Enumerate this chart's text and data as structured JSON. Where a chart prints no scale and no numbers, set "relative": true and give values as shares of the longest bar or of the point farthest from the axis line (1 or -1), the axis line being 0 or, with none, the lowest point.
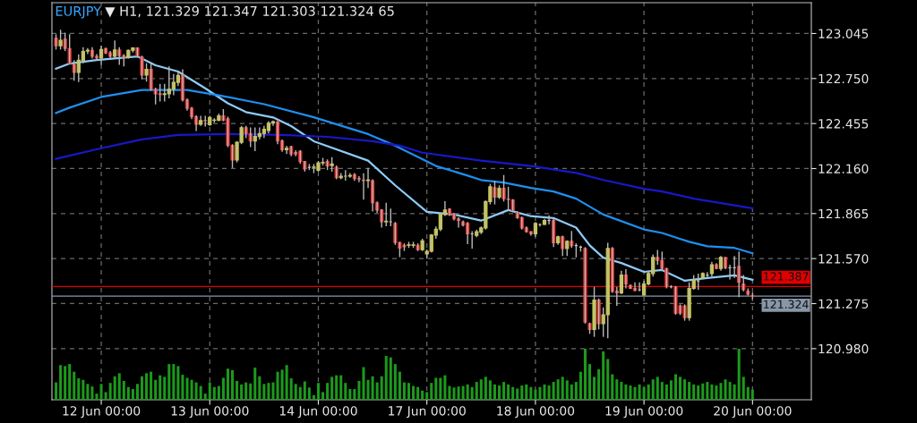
{
  "chart_data": [
    {
      "type": "candlestick",
      "title": "EURJPY ▼ H1, 121.329 121.347 121.303 121.324 65",
      "categories": [
        null,
        null,
        null,
        null,
        null,
        null,
        null,
        null,
        null,
        null,
        "12 Jun 00:00",
        null,
        null,
        null,
        null,
        null,
        null,
        null,
        null,
        null,
        null,
        null,
        null,
        null,
        null,
        null,
        null,
        null,
        null,
        null,
        null,
        null,
        null,
        null,
        "13 Jun 00:00",
        null,
        null,
        null,
        null,
        null,
        null,
        null,
        null,
        null,
        null,
        null,
        null,
        null,
        null,
        null,
        null,
        null,
        null,
        null,
        null,
        null,
        null,
        null,
        "14 Jun 00:00",
        null,
        null,
        null,
        null,
        null,
        null,
        null,
        null,
        null,
        null,
        null,
        null,
        null,
        null,
        null,
        null,
        null,
        null,
        null,
        null,
        null,
        null,
        null,
        "17 Jun 00:00",
        null,
        null,
        null,
        null,
        null,
        null,
        null,
        null,
        null,
        null,
        null,
        null,
        null,
        null,
        null,
        null,
        null,
        null,
        null,
        null,
        null,
        null,
        null,
        "18 Jun 00:00",
        null,
        null,
        null,
        null,
        null,
        null,
        null,
        null,
        null,
        null,
        null,
        null,
        null,
        null,
        null,
        null,
        null,
        null,
        null,
        null,
        null,
        null,
        null,
        "19 Jun 00:00",
        null,
        null,
        null,
        null,
        null,
        null,
        null,
        null,
        null,
        null,
        null,
        null,
        null,
        null,
        null,
        null,
        null,
        null,
        null,
        null,
        null,
        null,
        null,
        "20 Jun 00:00"
      ],
      "ohlc": [
        [
          123.014,
          123.04,
          122.94,
          122.965
        ],
        [
          122.965,
          123.07,
          122.94,
          123.0
        ],
        [
          123.008,
          123.05,
          122.93,
          122.947
        ],
        [
          122.947,
          123.04,
          122.85,
          122.85
        ],
        [
          122.84,
          122.87,
          122.735,
          122.79
        ],
        [
          122.79,
          122.908,
          122.727,
          122.87
        ],
        [
          122.87,
          122.956,
          122.85,
          122.927
        ],
        [
          122.93,
          122.95,
          122.91,
          122.935
        ],
        [
          122.935,
          122.955,
          122.88,
          122.895
        ],
        [
          122.895,
          122.91,
          122.87,
          122.885
        ],
        [
          122.885,
          122.966,
          122.84,
          122.94
        ],
        [
          122.947,
          122.953,
          122.91,
          122.918
        ],
        [
          122.918,
          122.93,
          122.88,
          122.895
        ],
        [
          122.895,
          123.0,
          122.88,
          122.937
        ],
        [
          122.937,
          122.955,
          122.84,
          122.9
        ],
        [
          122.9,
          122.91,
          122.83,
          122.89
        ],
        [
          122.89,
          122.94,
          122.88,
          122.935
        ],
        [
          122.935,
          122.955,
          122.92,
          122.95
        ],
        [
          122.95,
          122.955,
          122.89,
          122.9
        ],
        [
          122.89,
          122.9,
          122.745,
          122.773
        ],
        [
          122.773,
          122.85,
          122.73,
          122.81
        ],
        [
          122.81,
          122.85,
          122.67,
          122.68
        ],
        [
          122.68,
          122.69,
          122.58,
          122.65
        ],
        [
          122.65,
          122.715,
          122.6,
          122.645
        ],
        [
          122.645,
          122.715,
          122.6,
          122.65
        ],
        [
          122.65,
          122.83,
          122.62,
          122.68
        ],
        [
          122.68,
          122.78,
          122.64,
          122.725
        ],
        [
          122.725,
          122.8,
          122.7,
          122.77
        ],
        [
          122.77,
          122.81,
          122.6,
          122.61
        ],
        [
          122.61,
          122.62,
          122.54,
          122.555
        ],
        [
          122.555,
          122.565,
          122.484,
          122.5
        ],
        [
          122.5,
          122.51,
          122.406,
          122.45
        ],
        [
          122.45,
          122.505,
          122.44,
          122.475
        ],
        [
          122.475,
          122.505,
          122.435,
          122.473
        ],
        [
          122.447,
          122.505,
          122.44,
          122.495
        ],
        [
          122.476,
          122.49,
          122.46,
          122.478
        ],
        [
          122.476,
          122.52,
          122.47,
          122.505
        ],
        [
          122.505,
          122.55,
          122.47,
          122.476
        ],
        [
          122.486,
          122.5,
          122.3,
          122.312
        ],
        [
          122.312,
          122.32,
          122.164,
          122.216
        ],
        [
          122.216,
          122.34,
          122.2,
          122.332
        ],
        [
          122.332,
          122.44,
          122.32,
          122.428
        ],
        [
          122.428,
          122.44,
          122.36,
          122.39
        ],
        [
          122.39,
          122.43,
          122.3,
          122.341
        ],
        [
          122.341,
          122.43,
          122.274,
          122.37
        ],
        [
          122.37,
          122.43,
          122.35,
          122.39
        ],
        [
          122.39,
          122.44,
          122.36,
          122.418
        ],
        [
          122.409,
          122.47,
          122.39,
          122.457
        ],
        [
          122.457,
          122.475,
          122.44,
          122.467
        ],
        [
          122.467,
          122.47,
          122.32,
          122.341
        ],
        [
          122.341,
          122.35,
          122.27,
          122.284
        ],
        [
          122.284,
          122.31,
          122.255,
          122.293
        ],
        [
          122.303,
          122.31,
          122.24,
          122.255
        ],
        [
          122.265,
          122.28,
          122.24,
          122.255
        ],
        [
          122.274,
          122.28,
          122.19,
          122.206
        ],
        [
          122.206,
          122.21,
          122.14,
          122.158
        ],
        [
          122.168,
          122.19,
          122.15,
          122.168
        ],
        [
          122.168,
          122.19,
          122.13,
          122.17
        ],
        [
          122.148,
          122.21,
          122.14,
          122.197
        ],
        [
          122.197,
          122.23,
          122.18,
          122.2
        ],
        [
          122.206,
          122.22,
          122.15,
          122.177
        ],
        [
          122.18,
          122.235,
          122.139,
          122.19
        ],
        [
          122.168,
          122.18,
          122.09,
          122.1
        ],
        [
          122.1,
          122.13,
          122.09,
          122.11
        ],
        [
          122.11,
          122.15,
          122.081,
          122.11
        ],
        [
          122.11,
          122.13,
          122.1,
          122.115
        ],
        [
          122.12,
          122.13,
          122.08,
          122.095
        ],
        [
          122.095,
          122.11,
          122.07,
          122.091
        ],
        [
          122.085,
          122.129,
          121.956,
          122.081
        ],
        [
          122.081,
          122.164,
          122.033,
          122.085
        ],
        [
          122.081,
          122.09,
          121.879,
          121.936
        ],
        [
          121.936,
          121.945,
          121.87,
          121.888
        ],
        [
          121.888,
          121.895,
          121.773,
          121.811
        ],
        [
          121.811,
          121.936,
          121.782,
          121.815
        ],
        [
          121.811,
          121.898,
          121.782,
          121.811
        ],
        [
          121.801,
          121.81,
          121.66,
          121.676
        ],
        [
          121.676,
          121.68,
          121.58,
          121.638
        ],
        [
          121.657,
          121.67,
          121.62,
          121.648
        ],
        [
          121.657,
          121.68,
          121.64,
          121.66
        ],
        [
          121.657,
          121.68,
          121.64,
          121.66
        ],
        [
          121.657,
          121.67,
          121.62,
          121.628
        ],
        [
          121.628,
          121.7,
          121.62,
          121.686
        ],
        [
          121.6,
          121.63,
          121.57,
          121.618
        ],
        [
          121.618,
          121.73,
          121.61,
          121.724
        ],
        [
          121.724,
          121.78,
          121.7,
          121.763
        ],
        [
          121.763,
          121.87,
          121.75,
          121.859
        ],
        [
          121.859,
          121.946,
          121.85,
          121.888
        ],
        [
          121.894,
          121.9,
          121.85,
          121.859
        ],
        [
          121.859,
          121.87,
          121.82,
          121.83
        ],
        [
          121.83,
          121.84,
          121.773,
          121.82
        ],
        [
          121.809,
          121.82,
          121.78,
          121.79
        ],
        [
          121.8,
          121.81,
          121.665,
          121.732
        ],
        [
          121.732,
          121.75,
          121.636,
          121.732
        ],
        [
          121.722,
          121.76,
          121.71,
          121.746
        ],
        [
          121.742,
          121.78,
          121.73,
          121.771
        ],
        [
          121.771,
          121.95,
          121.76,
          121.944
        ],
        [
          121.944,
          122.06,
          121.925,
          122.041
        ],
        [
          122.035,
          122.079,
          121.925,
          121.973
        ],
        [
          121.973,
          122.05,
          121.96,
          122.031
        ],
        [
          122.031,
          122.118,
          121.944,
          121.963
        ],
        [
          121.96,
          122.041,
          121.886,
          121.958
        ],
        [
          121.954,
          121.96,
          121.88,
          121.886
        ],
        [
          121.871,
          121.88,
          121.83,
          121.838
        ],
        [
          121.838,
          121.845,
          121.76,
          121.771
        ],
        [
          121.771,
          121.78,
          121.74,
          121.747
        ],
        [
          121.747,
          121.75,
          121.72,
          121.732
        ],
        [
          121.732,
          121.81,
          121.713,
          121.8
        ],
        [
          121.794,
          121.8,
          121.78,
          121.794
        ],
        [
          121.794,
          121.83,
          121.79,
          121.819
        ],
        [
          121.819,
          121.853,
          121.794,
          121.819
        ],
        [
          121.819,
          121.83,
          121.645,
          121.674
        ],
        [
          121.674,
          121.72,
          121.66,
          121.713
        ],
        [
          121.713,
          121.72,
          121.587,
          121.636
        ],
        [
          121.636,
          121.69,
          121.587,
          121.684
        ],
        [
          121.684,
          121.751,
          121.64,
          121.655
        ],
        [
          121.655,
          121.67,
          121.578,
          121.655
        ],
        [
          121.645,
          121.655,
          121.616,
          121.645
        ],
        [
          121.636,
          121.645,
          121.144,
          121.154
        ],
        [
          121.144,
          121.15,
          121.077,
          121.106
        ],
        [
          121.106,
          121.385,
          121.057,
          121.298
        ],
        [
          121.298,
          121.308,
          121.106,
          121.144
        ],
        [
          121.144,
          121.25,
          121.057,
          121.202
        ],
        [
          121.202,
          121.674,
          121.048,
          121.636
        ],
        [
          121.636,
          121.645,
          121.346,
          121.356
        ],
        [
          121.356,
          121.385,
          121.26,
          121.346
        ],
        [
          121.346,
          121.491,
          121.337,
          121.462
        ],
        [
          121.462,
          121.501,
          121.375,
          121.404
        ],
        [
          121.395,
          121.4,
          121.37,
          121.375
        ],
        [
          121.375,
          121.414,
          121.356,
          121.362
        ],
        [
          121.366,
          121.414,
          121.356,
          121.366
        ],
        [
          121.331,
          121.424,
          121.327,
          121.404
        ],
        [
          121.404,
          121.491,
          121.395,
          121.472
        ],
        [
          121.472,
          121.597,
          121.452,
          121.578
        ],
        [
          121.578,
          121.626,
          121.53,
          121.558
        ],
        [
          121.558,
          121.616,
          121.491,
          121.505
        ],
        [
          121.505,
          121.51,
          121.375,
          121.385
        ],
        [
          121.385,
          121.395,
          121.375,
          121.385
        ],
        [
          121.385,
          121.39,
          121.202,
          121.212
        ],
        [
          121.26,
          121.27,
          121.2,
          121.212
        ],
        [
          121.26,
          121.27,
          121.163,
          121.183
        ],
        [
          121.183,
          121.414,
          121.163,
          121.375
        ],
        [
          121.375,
          121.462,
          121.366,
          121.433
        ],
        [
          121.424,
          121.472,
          121.366,
          121.424
        ],
        [
          121.443,
          121.48,
          121.44,
          121.472
        ],
        [
          121.462,
          121.482,
          121.443,
          121.462
        ],
        [
          121.472,
          121.549,
          121.452,
          121.53
        ],
        [
          121.53,
          121.54,
          121.5,
          121.505
        ],
        [
          121.505,
          121.587,
          121.491,
          121.578
        ],
        [
          121.578,
          121.58,
          121.5,
          121.51
        ],
        [
          121.51,
          121.53,
          121.433,
          121.51
        ],
        [
          121.51,
          121.587,
          121.443,
          121.51
        ],
        [
          121.52,
          121.616,
          121.318,
          121.414
        ],
        [
          121.404,
          121.462,
          121.356,
          121.366
        ],
        [
          121.356,
          121.375,
          121.327,
          121.337
        ],
        [
          121.329,
          121.347,
          121.303,
          121.324
        ]
      ],
      "series": [
        {
          "type": "line",
          "color": "#8ecbf7",
          "values": [
            122.814,
            null,
            null,
            122.848,
            null,
            null,
            null,
            null,
            null,
            122.871,
            null,
            null,
            null,
            null,
            null,
            null,
            null,
            null,
            122.895,
            null,
            null,
            null,
            122.837,
            null,
            null,
            null,
            null,
            122.796,
            null,
            null,
            null,
            null,
            null,
            122.686,
            null,
            null,
            null,
            null,
            122.588,
            null,
            null,
            null,
            122.53,
            null,
            null,
            null,
            null,
            null,
            122.495,
            null,
            null,
            null,
            122.438,
            null,
            null,
            null,
            null,
            122.339,
            null,
            null,
            null,
            null,
            null,
            null,
            null,
            null,
            null,
            null,
            null,
            122.212,
            null,
            null,
            null,
            null,
            null,
            122.05,
            null,
            null,
            null,
            null,
            null,
            null,
            121.877,
            null,
            null,
            null,
            null,
            null,
            121.859,
            null,
            null,
            null,
            null,
            null,
            121.819,
            null,
            null,
            null,
            null,
            null,
            121.888,
            null,
            null,
            null,
            null,
            121.848,
            null,
            null,
            null,
            null,
            121.836,
            null,
            null,
            null,
            null,
            121.773,
            null,
            null,
            121.657,
            null,
            null,
            121.576,
            null,
            null,
            null,
            121.541,
            null,
            null,
            null,
            null,
            121.483,
            null,
            null,
            null,
            121.495,
            null,
            null,
            null,
            null,
            121.425,
            null,
            null,
            null,
            null,
            121.443,
            null,
            null,
            null,
            null,
            null,
            121.46,
            null,
            null,
            null,
            121.431
          ]
        },
        {
          "type": "line",
          "color": "#1e8ff0",
          "values": [
            122.524,
            null,
            null,
            122.559,
            null,
            null,
            null,
            null,
            null,
            null,
            122.629,
            null,
            null,
            null,
            null,
            null,
            null,
            null,
            null,
            122.675,
            null,
            null,
            null,
            null,
            null,
            null,
            null,
            null,
            null,
            122.675,
            null,
            null,
            null,
            null,
            null,
            null,
            122.64,
            null,
            null,
            null,
            null,
            null,
            null,
            null,
            null,
            null,
            122.582,
            null,
            null,
            null,
            null,
            null,
            null,
            null,
            null,
            null,
            null,
            122.496,
            null,
            null,
            null,
            null,
            null,
            null,
            null,
            null,
            null,
            null,
            null,
            122.386,
            null,
            null,
            null,
            null,
            null,
            122.31,
            null,
            null,
            null,
            null,
            null,
            null,
            null,
            null,
            122.177,
            null,
            null,
            null,
            null,
            null,
            null,
            122.114,
            null,
            null,
            122.085,
            null,
            null,
            null,
            null,
            122.068,
            null,
            null,
            null,
            null,
            null,
            122.033,
            null,
            null,
            null,
            null,
            122.01,
            null,
            null,
            null,
            null,
            121.963,
            null,
            null,
            null,
            null,
            null,
            121.859,
            null,
            null,
            null,
            null,
            null,
            null,
            null,
            null,
            121.761,
            null,
            null,
            null,
            121.738,
            null,
            null,
            null,
            null,
            null,
            121.68,
            null,
            null,
            null,
            121.651,
            null,
            null,
            null,
            null,
            null,
            121.64,
            null,
            null,
            null,
            121.605
          ]
        },
        {
          "type": "line",
          "color": "#1818c8",
          "values": [
            122.224,
            null,
            null,
            null,
            null,
            null,
            null,
            null,
            null,
            null,
            122.293,
            null,
            null,
            null,
            null,
            null,
            null,
            null,
            null,
            122.351,
            null,
            null,
            null,
            null,
            null,
            null,
            null,
            122.38,
            null,
            null,
            null,
            null,
            null,
            null,
            null,
            null,
            null,
            null,
            122.386,
            null,
            null,
            null,
            null,
            null,
            null,
            null,
            null,
            null,
            null,
            null,
            122.38,
            null,
            null,
            null,
            null,
            null,
            null,
            null,
            null,
            null,
            122.368,
            null,
            null,
            null,
            null,
            null,
            null,
            null,
            null,
            null,
            122.339,
            null,
            null,
            null,
            null,
            null,
            122.31,
            null,
            null,
            null,
            null,
            122.264,
            null,
            null,
            null,
            null,
            null,
            null,
            null,
            null,
            null,
            null,
            null,
            null,
            122.212,
            null,
            null,
            null,
            null,
            null,
            null,
            null,
            null,
            null,
            null,
            122.177,
            null,
            null,
            null,
            null,
            null,
            null,
            null,
            null,
            null,
            122.131,
            null,
            null,
            null,
            null,
            null,
            122.085,
            null,
            null,
            null,
            null,
            null,
            null,
            null,
            null,
            122.027,
            null,
            null,
            null,
            122.01,
            null,
            null,
            null,
            null,
            null,
            null,
            121.963,
            null,
            null,
            null,
            null,
            null,
            null,
            null,
            null,
            null,
            null,
            null,
            null,
            121.9
          ]
        }
      ],
      "ylim": [
        120.645,
        123.247
      ],
      "yticks": [
        {
          "value": 120.98,
          "label": "120.980"
        },
        121.275,
        {
          "value": 121.57,
          "label": "121.570"
        },
        121.865,
        {
          "value": 122.16,
          "label": "122.160"
        },
        122.455,
        {
          "value": 122.75,
          "label": "122.750"
        },
        123.045
      ],
      "ref_lines": [
        {
          "axis": "y",
          "value": 121.387,
          "label": "121.387",
          "color": "#e00000"
        },
        {
          "axis": "y",
          "value": 121.324,
          "label": "121.324",
          "color": "#8797a8"
        }
      ],
      "grid": true,
      "marker": "none",
      "line_style": "solid"
    },
    {
      "type": "bar",
      "relative": true,
      "color": "#1c9a1c",
      "categories": [
        null,
        null,
        null,
        null,
        null,
        null,
        null,
        null,
        null,
        null,
        null,
        null,
        null,
        null,
        null,
        null,
        null,
        null,
        null,
        null,
        null,
        null,
        null,
        null,
        null,
        null,
        null,
        null,
        null,
        null,
        null,
        null,
        null,
        null,
        null,
        null,
        null,
        null,
        null,
        null,
        null,
        null,
        null,
        null,
        null,
        null,
        null,
        null,
        null,
        null,
        null,
        null,
        null,
        null,
        null,
        null,
        null,
        null,
        null,
        null,
        null,
        null,
        null,
        null,
        null,
        null,
        null,
        null,
        null,
        null,
        null,
        null,
        null,
        null,
        null,
        null,
        null,
        null,
        null,
        null,
        null,
        null,
        null,
        null,
        null,
        null,
        null,
        null,
        null,
        null,
        null,
        null,
        null,
        null,
        null,
        null,
        null,
        null,
        null,
        null,
        null,
        null,
        null,
        null,
        null,
        null,
        null,
        null,
        null,
        null,
        null,
        null,
        null,
        null,
        null,
        null,
        null,
        null,
        null,
        null,
        null,
        null,
        null,
        null,
        null,
        null,
        null,
        null,
        null,
        null,
        null,
        null,
        null,
        null,
        null,
        null,
        null,
        null,
        null,
        null,
        null,
        null,
        null,
        null,
        null,
        null,
        null,
        null,
        null,
        null,
        null,
        null,
        null,
        null,
        null
      ],
      "values": [
        0.34,
        0.68,
        0.66,
        0.7,
        0.55,
        0.42,
        0.39,
        0.31,
        0.26,
        0.12,
        0.31,
        0.15,
        0.33,
        0.46,
        0.52,
        0.37,
        0.25,
        0.21,
        0.31,
        0.46,
        0.52,
        0.55,
        0.39,
        0.48,
        0.45,
        0.7,
        0.7,
        0.66,
        0.49,
        0.43,
        0.39,
        0.34,
        0.27,
        0.12,
        0.34,
        0.25,
        0.27,
        0.43,
        0.61,
        0.58,
        0.37,
        0.3,
        0.34,
        0.32,
        0.63,
        0.46,
        0.31,
        0.33,
        0.34,
        0.55,
        0.59,
        0.68,
        0.42,
        0.31,
        0.25,
        0.36,
        0.24,
        0.09,
        0.33,
        0.15,
        0.33,
        0.45,
        0.48,
        0.48,
        0.33,
        0.21,
        0.21,
        0.37,
        0.64,
        0.39,
        0.46,
        0.34,
        0.46,
        0.86,
        0.83,
        0.7,
        0.55,
        0.34,
        0.33,
        0.27,
        0.25,
        0.18,
        0.15,
        0.33,
        0.43,
        0.43,
        0.48,
        0.27,
        0.24,
        0.26,
        0.27,
        0.3,
        0.25,
        0.35,
        0.4,
        0.45,
        0.38,
        0.3,
        0.28,
        0.35,
        0.3,
        0.25,
        0.22,
        0.28,
        0.3,
        0.25,
        0.2,
        0.25,
        0.3,
        0.28,
        0.35,
        0.4,
        0.45,
        0.38,
        0.3,
        0.35,
        0.55,
        1.0,
        0.7,
        0.45,
        0.6,
        0.95,
        0.8,
        0.5,
        0.4,
        0.35,
        0.3,
        0.28,
        0.25,
        0.3,
        0.25,
        0.3,
        0.4,
        0.45,
        0.35,
        0.3,
        0.38,
        0.5,
        0.45,
        0.4,
        0.35,
        0.3,
        0.28,
        0.32,
        0.35,
        0.3,
        0.28,
        0.33,
        0.4,
        0.35,
        0.3,
        1.0,
        0.45,
        0.25,
        0.2
      ]
    }
  ]
}
